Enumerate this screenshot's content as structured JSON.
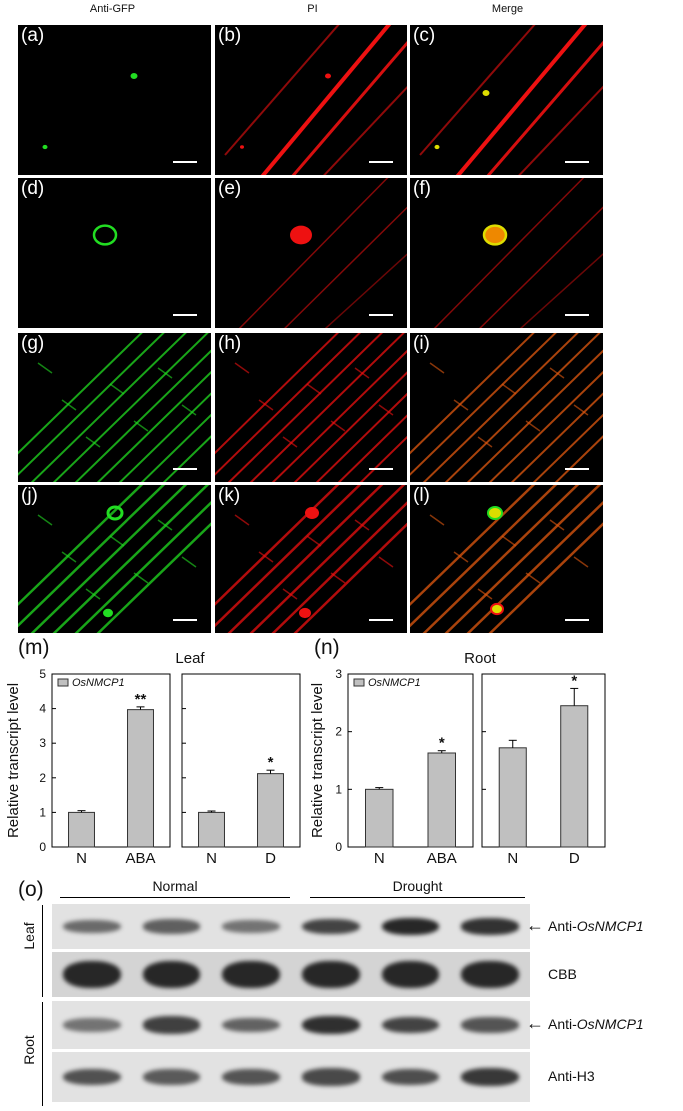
{
  "columns": [
    "Anti-GFP",
    "PI",
    "Merge"
  ],
  "panels": [
    {
      "id": "a",
      "label": "(a)",
      "channel": "green"
    },
    {
      "id": "b",
      "label": "(b)",
      "channel": "red"
    },
    {
      "id": "c",
      "label": "(c)",
      "channel": "merge"
    },
    {
      "id": "d",
      "label": "(d)",
      "channel": "green"
    },
    {
      "id": "e",
      "label": "(e)",
      "channel": "red"
    },
    {
      "id": "f",
      "label": "(f)",
      "channel": "merge"
    },
    {
      "id": "g",
      "label": "(g)",
      "channel": "green"
    },
    {
      "id": "h",
      "label": "(h)",
      "channel": "red"
    },
    {
      "id": "i",
      "label": "(i)",
      "channel": "merge"
    },
    {
      "id": "j",
      "label": "(j)",
      "channel": "green"
    },
    {
      "id": "k",
      "label": "(k)",
      "channel": "red"
    },
    {
      "id": "l",
      "label": "(l)",
      "channel": "merge"
    }
  ],
  "colors": {
    "green": "#22dd22",
    "red": "#ee1111",
    "merge": "#dddd00",
    "bar": "#c0c0c0"
  },
  "chart_data": [
    {
      "panel_label": "(m)",
      "type": "bar",
      "title": "Leaf",
      "ylabel": "Relative transcript level",
      "ylim": [
        0,
        5
      ],
      "yticks": [
        0,
        1,
        2,
        3,
        4,
        5
      ],
      "legend": "OsNMCP1",
      "legend_position": "top-left",
      "subplots": [
        {
          "categories": [
            "N",
            "ABA"
          ],
          "values": [
            1.0,
            3.97
          ],
          "errors": [
            0.05,
            0.08
          ],
          "significance": [
            "",
            "**"
          ]
        },
        {
          "categories": [
            "N",
            "D"
          ],
          "values": [
            1.0,
            2.12
          ],
          "errors": [
            0.04,
            0.1
          ],
          "significance": [
            "",
            "*"
          ]
        }
      ]
    },
    {
      "panel_label": "(n)",
      "type": "bar",
      "title": "Root",
      "ylabel": "Relative transcript level",
      "ylim": [
        0,
        3
      ],
      "yticks": [
        0,
        1,
        2,
        3
      ],
      "legend": "OsNMCP1",
      "legend_position": "top-left",
      "subplots": [
        {
          "categories": [
            "N",
            "ABA"
          ],
          "values": [
            1.0,
            1.63
          ],
          "errors": [
            0.03,
            0.04
          ],
          "significance": [
            "",
            "*"
          ]
        },
        {
          "categories": [
            "N",
            "D"
          ],
          "values": [
            1.72,
            2.45
          ],
          "errors": [
            0.13,
            0.3
          ],
          "significance": [
            "",
            "*"
          ]
        }
      ]
    }
  ],
  "blot": {
    "panel_label": "(o)",
    "groups": [
      "Normal",
      "Drought"
    ],
    "tissues": [
      "Leaf",
      "Root"
    ],
    "rows": [
      {
        "label_prefix": "Anti-",
        "label_italic": "OsNMCP1",
        "intensities": [
          0.55,
          0.62,
          0.5,
          0.78,
          0.95,
          0.88
        ],
        "kind": "band",
        "arrow": true
      },
      {
        "label_prefix": "CBB",
        "label_italic": "",
        "intensities": [
          0.95,
          0.95,
          0.95,
          0.95,
          0.95,
          0.95
        ],
        "kind": "thick",
        "arrow": false
      },
      {
        "label_prefix": "Anti-",
        "label_italic": "OsNMCP1",
        "intensities": [
          0.5,
          0.8,
          0.6,
          0.9,
          0.78,
          0.68
        ],
        "kind": "band",
        "arrow": true
      },
      {
        "label_prefix": "Anti-H3",
        "label_italic": "",
        "intensities": [
          0.7,
          0.65,
          0.68,
          0.75,
          0.72,
          0.85
        ],
        "kind": "band",
        "arrow": false
      }
    ]
  }
}
